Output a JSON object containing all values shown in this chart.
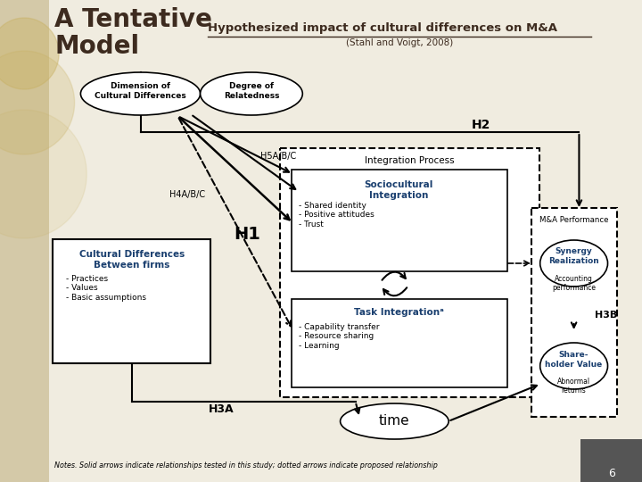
{
  "bg_color": "#f0ece0",
  "left_panel_color": "#d4c9a8",
  "white": "#ffffff",
  "title1": "A Tentative",
  "title2": "Model",
  "main_title": "Hypothesized impact of cultural differences on M&A",
  "subtitle": "(Stahl and Voigt, 2008)",
  "blue_color": "#1a3f6f",
  "dark_brown": "#3d2b1f",
  "notes": "Notes. Solid arrows indicate relationships tested in this study; dotted arrows indicate proposed relationship",
  "page_num": "6"
}
